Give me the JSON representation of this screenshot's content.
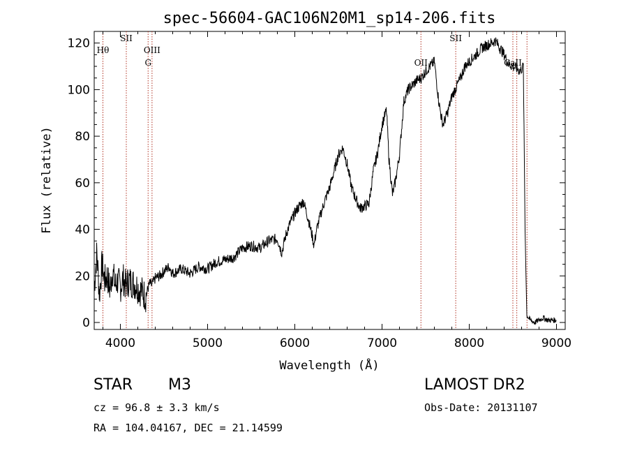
{
  "chart_data": {
    "type": "line",
    "title": "spec-56604-GAC106N20M1_sp14-206.fits",
    "xlabel": "Wavelength (Å)",
    "ylabel": "Flux (relative)",
    "xlim": [
      3700,
      9100
    ],
    "ylim": [
      -3,
      125
    ],
    "xticks": [
      4000,
      5000,
      6000,
      7000,
      8000,
      9000
    ],
    "yticks": [
      0,
      20,
      40,
      60,
      80,
      100,
      120
    ],
    "grid": false,
    "line_color": "#000000",
    "marker_color": "#b03020",
    "series": [
      {
        "x": [
          3700,
          3730,
          3760,
          3790,
          3820,
          3850,
          3880,
          3910,
          3940,
          3970,
          4000,
          4030,
          4060,
          4100,
          4140,
          4180,
          4220,
          4260,
          4290,
          4320,
          4340,
          4360,
          4400,
          4450,
          4500,
          4560,
          4600,
          4700,
          4800,
          4900,
          5000,
          5100,
          5200,
          5300,
          5400,
          5500,
          5600,
          5700,
          5800,
          5850,
          5900,
          5950,
          6000,
          6050,
          6100,
          6150,
          6200,
          6220,
          6250,
          6300,
          6350,
          6400,
          6450,
          6500,
          6550,
          6600,
          6650,
          6700,
          6750,
          6800,
          6850,
          6900,
          6950,
          7000,
          7050,
          7060,
          7080,
          7120,
          7150,
          7200,
          7250,
          7300,
          7350,
          7400,
          7450,
          7500,
          7550,
          7600,
          7650,
          7680,
          7700,
          7750,
          7800,
          7850,
          7900,
          7950,
          8000,
          8050,
          8100,
          8150,
          8200,
          8250,
          8300,
          8350,
          8400,
          8450,
          8500,
          8550,
          8580,
          8600,
          8620,
          8640,
          8660,
          8700,
          8750,
          8800,
          8850,
          8900,
          9000
        ],
        "y": [
          15,
          30,
          12,
          25,
          18,
          20,
          14,
          22,
          16,
          18,
          15,
          19,
          16,
          18,
          17,
          16,
          14,
          13,
          11,
          15,
          17,
          16,
          19,
          20,
          22,
          24,
          21,
          23,
          21,
          24,
          23,
          26,
          27,
          28,
          32,
          33,
          32,
          35,
          36,
          30,
          38,
          43,
          47,
          50,
          52,
          45,
          37,
          33,
          40,
          47,
          53,
          58,
          65,
          72,
          75,
          68,
          58,
          53,
          49,
          50,
          51,
          65,
          73,
          85,
          91,
          85,
          70,
          55,
          60,
          72,
          95,
          100,
          102,
          104,
          105,
          108,
          110,
          112,
          95,
          88,
          85,
          90,
          97,
          101,
          105,
          110,
          112,
          114,
          116,
          118,
          119,
          120,
          121,
          118,
          115,
          111,
          110,
          109,
          108,
          109,
          110,
          40,
          3,
          1,
          0,
          1,
          2,
          1,
          1
        ]
      }
    ],
    "lines": [
      {
        "x": 3800,
        "label": "Hθ",
        "row": 1
      },
      {
        "x": 4068,
        "label": "SII",
        "row": 0
      },
      {
        "x": 4318,
        "label": "G",
        "row": 2
      },
      {
        "x": 4363,
        "label": "OIII",
        "row": 1
      },
      {
        "x": 7446,
        "label": "OII",
        "row": 2
      },
      {
        "x": 7845,
        "label": "SII",
        "row": 0
      },
      {
        "x": 8500,
        "label": "CaII",
        "row": 2
      },
      {
        "x": 8545,
        "label": "",
        "row": 2
      },
      {
        "x": 8662,
        "label": "",
        "row": 2
      }
    ]
  },
  "info": {
    "star_type": "STAR",
    "subclass": "M3",
    "survey": "LAMOST DR2",
    "cz": "cz = 96.8 ± 3.3 km/s",
    "obs_date": "Obs-Date: 20131107",
    "radec": "RA = 104.04167, DEC =  21.14599"
  }
}
